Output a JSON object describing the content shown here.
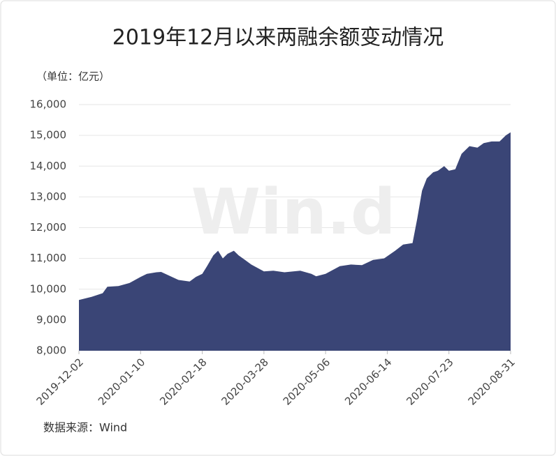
{
  "chart_data": {
    "type": "area",
    "title": "2019年12月以来两融余额变动情况",
    "unit_label": "（单位：亿元）",
    "source": "数据来源：Wind",
    "watermark": "Win.d",
    "x": [
      "2019-12-02",
      "2019-12-10",
      "2019-12-17",
      "2019-12-20",
      "2019-12-27",
      "2020-01-03",
      "2020-01-10",
      "2020-01-14",
      "2020-01-20",
      "2020-01-23",
      "2020-02-03",
      "2020-02-10",
      "2020-02-14",
      "2020-02-18",
      "2020-02-21",
      "2020-02-25",
      "2020-02-28",
      "2020-03-02",
      "2020-03-05",
      "2020-03-09",
      "2020-03-12",
      "2020-03-16",
      "2020-03-20",
      "2020-03-28",
      "2020-04-03",
      "2020-04-10",
      "2020-04-20",
      "2020-04-27",
      "2020-04-30",
      "2020-05-06",
      "2020-05-15",
      "2020-05-22",
      "2020-05-29",
      "2020-06-05",
      "2020-06-12",
      "2020-06-19",
      "2020-06-24",
      "2020-06-30",
      "2020-07-03",
      "2020-07-06",
      "2020-07-09",
      "2020-07-13",
      "2020-07-16",
      "2020-07-20",
      "2020-07-23",
      "2020-07-27",
      "2020-07-31",
      "2020-08-05",
      "2020-08-10",
      "2020-08-14",
      "2020-08-19",
      "2020-08-24",
      "2020-08-28",
      "2020-08-31"
    ],
    "values": [
      9650,
      9750,
      9870,
      10080,
      10100,
      10200,
      10400,
      10500,
      10550,
      10560,
      10300,
      10250,
      10400,
      10500,
      10750,
      11100,
      11250,
      11000,
      11150,
      11250,
      11100,
      10950,
      10800,
      10580,
      10600,
      10550,
      10600,
      10500,
      10420,
      10500,
      10750,
      10800,
      10780,
      10950,
      11000,
      11250,
      11450,
      11500,
      12300,
      13200,
      13600,
      13800,
      13850,
      14000,
      13850,
      13900,
      14400,
      14650,
      14600,
      14750,
      14800,
      14800,
      15000,
      15100
    ],
    "color": "#3a4576",
    "xlim": [
      "2019-12-02",
      "2020-08-31"
    ],
    "xticks": [
      "2019-12-02",
      "2020-01-10",
      "2020-02-18",
      "2020-03-28",
      "2020-05-06",
      "2020-06-14",
      "2020-07-23",
      "2020-08-31"
    ],
    "ylim": [
      8000,
      16000
    ],
    "yticks": [
      {
        "value": 8000,
        "label": "8,000"
      },
      {
        "value": 9000,
        "label": "9,000"
      },
      {
        "value": 10000,
        "label": "10,000"
      },
      {
        "value": 11000,
        "label": "11,000"
      },
      {
        "value": 12000,
        "label": "12,000"
      },
      {
        "value": 13000,
        "label": "13,000"
      },
      {
        "value": 14000,
        "label": "14,000"
      },
      {
        "value": 15000,
        "label": "15,000"
      },
      {
        "value": 16000,
        "label": "16,000"
      }
    ],
    "grid": true
  }
}
